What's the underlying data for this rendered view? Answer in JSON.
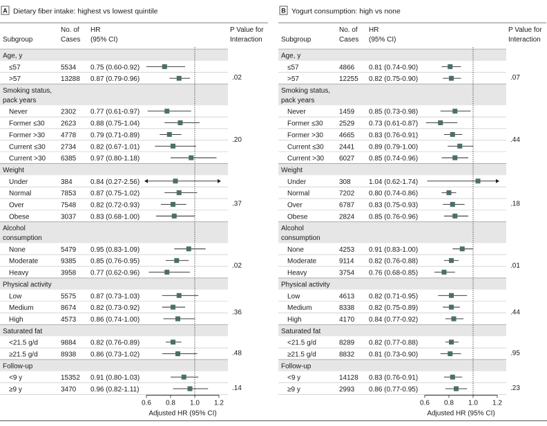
{
  "chart_data": [
    {
      "type": "forest",
      "panel_letter": "A",
      "title": "Dietary fiber intake: highest vs lowest quintile",
      "columns": {
        "subgroup": "Subgroup",
        "cases_line1": "No. of",
        "cases_line2": "Cases",
        "hr_line1": "HR",
        "hr_line2": "(95% CI)",
        "p_line1": "P Value for",
        "p_line2": "Interaction"
      },
      "xlabel": "Adjusted HR (95% CI)",
      "xlim": [
        0.6,
        1.2
      ],
      "xticks": [
        "0.6",
        "0.8",
        "1.0",
        "1.2"
      ],
      "reference_line": 1.0,
      "groups": [
        {
          "label": [
            "Age, y"
          ],
          "p": ".02",
          "rows": [
            {
              "label": "≤57",
              "cases": "5534",
              "hr_text": "0.75 (0.60-0.92)",
              "hr": 0.75,
              "lo": 0.6,
              "hi": 0.92
            },
            {
              "label": ">57",
              "cases": "13288",
              "hr_text": "0.87 (0.79-0.96)",
              "hr": 0.87,
              "lo": 0.79,
              "hi": 0.96
            }
          ]
        },
        {
          "label": [
            "Smoking status,",
            "pack years"
          ],
          "p": ".20",
          "rows": [
            {
              "label": "Never",
              "cases": "2302",
              "hr_text": "0.77 (0.61-0.97)",
              "hr": 0.77,
              "lo": 0.61,
              "hi": 0.97
            },
            {
              "label": "Former ≤30",
              "cases": "2623",
              "hr_text": "0.88 (0.75-1.04)",
              "hr": 0.88,
              "lo": 0.75,
              "hi": 1.04
            },
            {
              "label": "Former >30",
              "cases": "4778",
              "hr_text": "0.79 (0.71-0.89)",
              "hr": 0.79,
              "lo": 0.71,
              "hi": 0.89
            },
            {
              "label": "Current ≤30",
              "cases": "2734",
              "hr_text": "0.82 (0.67-1.01)",
              "hr": 0.82,
              "lo": 0.67,
              "hi": 1.01
            },
            {
              "label": "Current >30",
              "cases": "6385",
              "hr_text": "0.97 (0.80-1.18)",
              "hr": 0.97,
              "lo": 0.8,
              "hi": 1.18
            }
          ]
        },
        {
          "label": [
            "Weight"
          ],
          "p": ".37",
          "rows": [
            {
              "label": "Under",
              "cases": "384",
              "hr_text": "0.84 (0.27-2.56)",
              "hr": 0.84,
              "lo": 0.27,
              "hi": 2.56
            },
            {
              "label": "Normal",
              "cases": "7853",
              "hr_text": "0.87 (0.75-1.02)",
              "hr": 0.87,
              "lo": 0.75,
              "hi": 1.02
            },
            {
              "label": "Over",
              "cases": "7548",
              "hr_text": "0.82 (0.72-0.93)",
              "hr": 0.82,
              "lo": 0.72,
              "hi": 0.93
            },
            {
              "label": "Obese",
              "cases": "3037",
              "hr_text": "0.83 (0.68-1.00)",
              "hr": 0.83,
              "lo": 0.68,
              "hi": 1.0
            }
          ]
        },
        {
          "label": [
            "Alcohol",
            "consumption"
          ],
          "p": ".02",
          "rows": [
            {
              "label": "None",
              "cases": "5479",
              "hr_text": "0.95 (0.83-1.09)",
              "hr": 0.95,
              "lo": 0.83,
              "hi": 1.09
            },
            {
              "label": "Moderate",
              "cases": "9385",
              "hr_text": "0.85 (0.76-0.95)",
              "hr": 0.85,
              "lo": 0.76,
              "hi": 0.95
            },
            {
              "label": "Heavy",
              "cases": "3958",
              "hr_text": "0.77 (0.62-0.96)",
              "hr": 0.77,
              "lo": 0.62,
              "hi": 0.96
            }
          ]
        },
        {
          "label": [
            "Physical activity"
          ],
          "p": ".36",
          "rows": [
            {
              "label": "Low",
              "cases": "5575",
              "hr_text": "0.87 (0.73-1.03)",
              "hr": 0.87,
              "lo": 0.73,
              "hi": 1.03
            },
            {
              "label": "Medium",
              "cases": "8674",
              "hr_text": "0.82 (0.73-0.92)",
              "hr": 0.82,
              "lo": 0.73,
              "hi": 0.92
            },
            {
              "label": "High",
              "cases": "4573",
              "hr_text": "0.86 (0.74-1.00)",
              "hr": 0.86,
              "lo": 0.74,
              "hi": 1.0
            }
          ]
        },
        {
          "label": [
            "Saturated fat"
          ],
          "p": ".48",
          "rows": [
            {
              "label": "<21.5 g/d",
              "cases": "9884",
              "hr_text": "0.82 (0.76-0.89)",
              "hr": 0.82,
              "lo": 0.76,
              "hi": 0.89
            },
            {
              "label": "≥21.5 g/d",
              "cases": "8938",
              "hr_text": "0.86 (0.73-1.02)",
              "hr": 0.86,
              "lo": 0.73,
              "hi": 1.02
            }
          ]
        },
        {
          "label": [
            "Follow-up"
          ],
          "p": ".14",
          "rows": [
            {
              "label": "<9 y",
              "cases": "15352",
              "hr_text": "0.91 (0.80-1.03)",
              "hr": 0.91,
              "lo": 0.8,
              "hi": 1.03
            },
            {
              "label": "≥9 y",
              "cases": "3470",
              "hr_text": "0.96 (0.82-1.11)",
              "hr": 0.96,
              "lo": 0.82,
              "hi": 1.11
            }
          ]
        }
      ]
    },
    {
      "type": "forest",
      "panel_letter": "B",
      "title": "Yogurt consumption: high vs none",
      "columns": {
        "subgroup": "Subgroup",
        "cases_line1": "No. of",
        "cases_line2": "Cases",
        "hr_line1": "HR",
        "hr_line2": "(95% CI)",
        "p_line1": "P Value for",
        "p_line2": "Interaction"
      },
      "xlabel": "Adjusted HR (95% CI)",
      "xlim": [
        0.6,
        1.2
      ],
      "xticks": [
        "0.6",
        "0.8",
        "1.0",
        "1.2"
      ],
      "reference_line": 1.0,
      "groups": [
        {
          "label": [
            "Age, y"
          ],
          "p": ".07",
          "rows": [
            {
              "label": "≤57",
              "cases": "4866",
              "hr_text": "0.81 (0.74-0.90)",
              "hr": 0.81,
              "lo": 0.74,
              "hi": 0.9
            },
            {
              "label": ">57",
              "cases": "12255",
              "hr_text": "0.82 (0.75-0.90)",
              "hr": 0.82,
              "lo": 0.75,
              "hi": 0.9
            }
          ]
        },
        {
          "label": [
            "Smoking status,",
            "pack years"
          ],
          "p": ".44",
          "rows": [
            {
              "label": "Never",
              "cases": "1459",
              "hr_text": "0.85 (0.73-0.98)",
              "hr": 0.85,
              "lo": 0.73,
              "hi": 0.98
            },
            {
              "label": "Former ≤30",
              "cases": "2529",
              "hr_text": "0.73 (0.61-0.87)",
              "hr": 0.73,
              "lo": 0.61,
              "hi": 0.87
            },
            {
              "label": "Former >30",
              "cases": "4665",
              "hr_text": "0.83 (0.76-0.91)",
              "hr": 0.83,
              "lo": 0.76,
              "hi": 0.91
            },
            {
              "label": "Current ≤30",
              "cases": "2441",
              "hr_text": "0.89 (0.79-1.00)",
              "hr": 0.89,
              "lo": 0.79,
              "hi": 1.0
            },
            {
              "label": "Current >30",
              "cases": "6027",
              "hr_text": "0.85 (0.74-0.96)",
              "hr": 0.85,
              "lo": 0.74,
              "hi": 0.96
            }
          ]
        },
        {
          "label": [
            "Weight"
          ],
          "p": ".18",
          "rows": [
            {
              "label": "Under",
              "cases": "308",
              "hr_text": "1.04 (0.62-1.74)",
              "hr": 1.04,
              "lo": 0.62,
              "hi": 1.74
            },
            {
              "label": "Normal",
              "cases": "7202",
              "hr_text": "0.80 (0.74-0.86)",
              "hr": 0.8,
              "lo": 0.74,
              "hi": 0.86
            },
            {
              "label": "Over",
              "cases": "6787",
              "hr_text": "0.83 (0.75-0.93)",
              "hr": 0.83,
              "lo": 0.75,
              "hi": 0.93
            },
            {
              "label": "Obese",
              "cases": "2824",
              "hr_text": "0.85 (0.76-0.96)",
              "hr": 0.85,
              "lo": 0.76,
              "hi": 0.96
            }
          ]
        },
        {
          "label": [
            "Alcohol",
            "consumption"
          ],
          "p": ".01",
          "rows": [
            {
              "label": "None",
              "cases": "4253",
              "hr_text": "0.91 (0.83-1.00)",
              "hr": 0.91,
              "lo": 0.83,
              "hi": 1.0
            },
            {
              "label": "Moderate",
              "cases": "9114",
              "hr_text": "0.82 (0.76-0.88)",
              "hr": 0.82,
              "lo": 0.76,
              "hi": 0.88
            },
            {
              "label": "Heavy",
              "cases": "3754",
              "hr_text": "0.76 (0.68-0.85)",
              "hr": 0.76,
              "lo": 0.68,
              "hi": 0.85
            }
          ]
        },
        {
          "label": [
            "Physical activity"
          ],
          "p": ".44",
          "rows": [
            {
              "label": "Low",
              "cases": "4613",
              "hr_text": "0.82 (0.71-0.95)",
              "hr": 0.82,
              "lo": 0.71,
              "hi": 0.95
            },
            {
              "label": "Medium",
              "cases": "8338",
              "hr_text": "0.82 (0.75-0.89)",
              "hr": 0.82,
              "lo": 0.75,
              "hi": 0.89
            },
            {
              "label": "High",
              "cases": "4170",
              "hr_text": "0.84 (0.77-0.92)",
              "hr": 0.84,
              "lo": 0.77,
              "hi": 0.92
            }
          ]
        },
        {
          "label": [
            "Saturated fat"
          ],
          "p": ".95",
          "rows": [
            {
              "label": "<21.5 g/d",
              "cases": "8289",
              "hr_text": "0.82 (0.77-0.88)",
              "hr": 0.82,
              "lo": 0.77,
              "hi": 0.88
            },
            {
              "label": "≥21.5 g/d",
              "cases": "8832",
              "hr_text": "0.81 (0.73-0.90)",
              "hr": 0.81,
              "lo": 0.73,
              "hi": 0.9
            }
          ]
        },
        {
          "label": [
            "Follow-up"
          ],
          "p": ".23",
          "rows": [
            {
              "label": "<9 y",
              "cases": "14128",
              "hr_text": "0.83 (0.76-0.91)",
              "hr": 0.83,
              "lo": 0.76,
              "hi": 0.91
            },
            {
              "label": "≥9 y",
              "cases": "2993",
              "hr_text": "0.86 (0.77-0.95)",
              "hr": 0.86,
              "lo": 0.77,
              "hi": 0.95
            }
          ]
        }
      ]
    }
  ],
  "colors": {
    "marker": "#4b6e6a",
    "shade": "#e6e6e6",
    "text": "#1a1a1a",
    "rule": "#555555"
  }
}
